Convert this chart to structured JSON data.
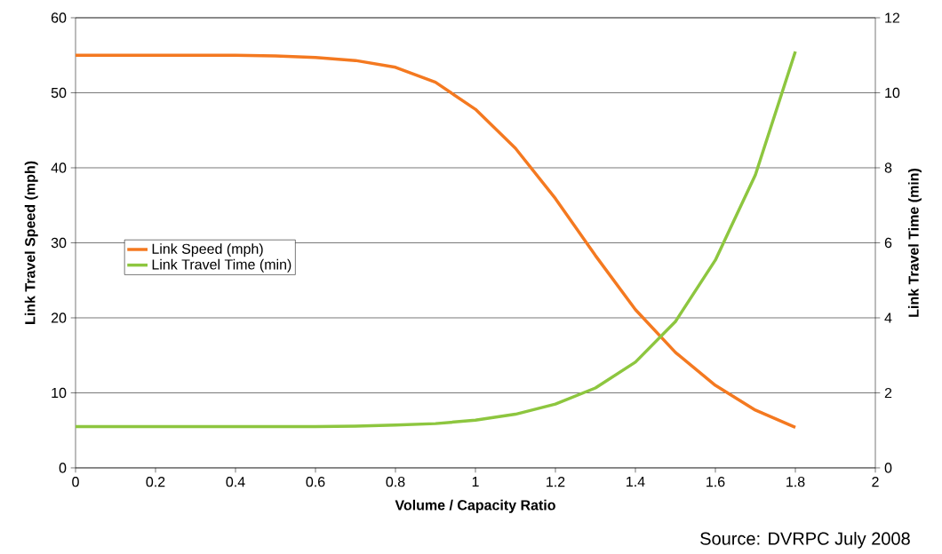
{
  "chart_data": {
    "type": "line",
    "xlabel": "Volume / Capacity Ratio",
    "ylabel": "Link Travel Speed (mph)",
    "y2label": "Link Travel Time (min)",
    "annotations": [
      "Source: DVRPC July 2008"
    ],
    "x": [
      0,
      0.1,
      0.2,
      0.3,
      0.4,
      0.5,
      0.6,
      0.7,
      0.8,
      0.9,
      1.0,
      1.1,
      1.2,
      1.3,
      1.4,
      1.5,
      1.6,
      1.7,
      1.8
    ],
    "series": [
      {
        "name": "Link Speed (mph)",
        "color": "#f47920",
        "values": [
          55,
          55,
          55,
          55,
          55,
          54.9,
          54.7,
          54.3,
          53.4,
          51.4,
          47.8,
          42.6,
          35.9,
          28.3,
          21.1,
          15.4,
          11.0,
          7.7,
          5.4
        ]
      },
      {
        "name": "Link Travel Time (min)",
        "color": "#8dc63f",
        "axis": "y2",
        "values": [
          1.1,
          1.1,
          1.1,
          1.1,
          1.1,
          1.1,
          1.1,
          1.11,
          1.14,
          1.18,
          1.27,
          1.43,
          1.7,
          2.13,
          2.82,
          3.9,
          5.54,
          7.81,
          11.1
        ]
      }
    ],
    "xlim": [
      0,
      2
    ],
    "xticks": [
      0,
      0.2,
      0.4,
      0.6,
      0.8,
      1,
      1.2,
      1.4,
      1.6,
      1.8,
      2
    ],
    "ylim": [
      0,
      60
    ],
    "yticks": [
      0,
      10,
      20,
      30,
      40,
      50,
      60
    ],
    "y2lim": [
      0,
      12
    ],
    "y2ticks": [
      0,
      2,
      4,
      6,
      8,
      10,
      12
    ],
    "grid": "y",
    "legend": "left"
  }
}
